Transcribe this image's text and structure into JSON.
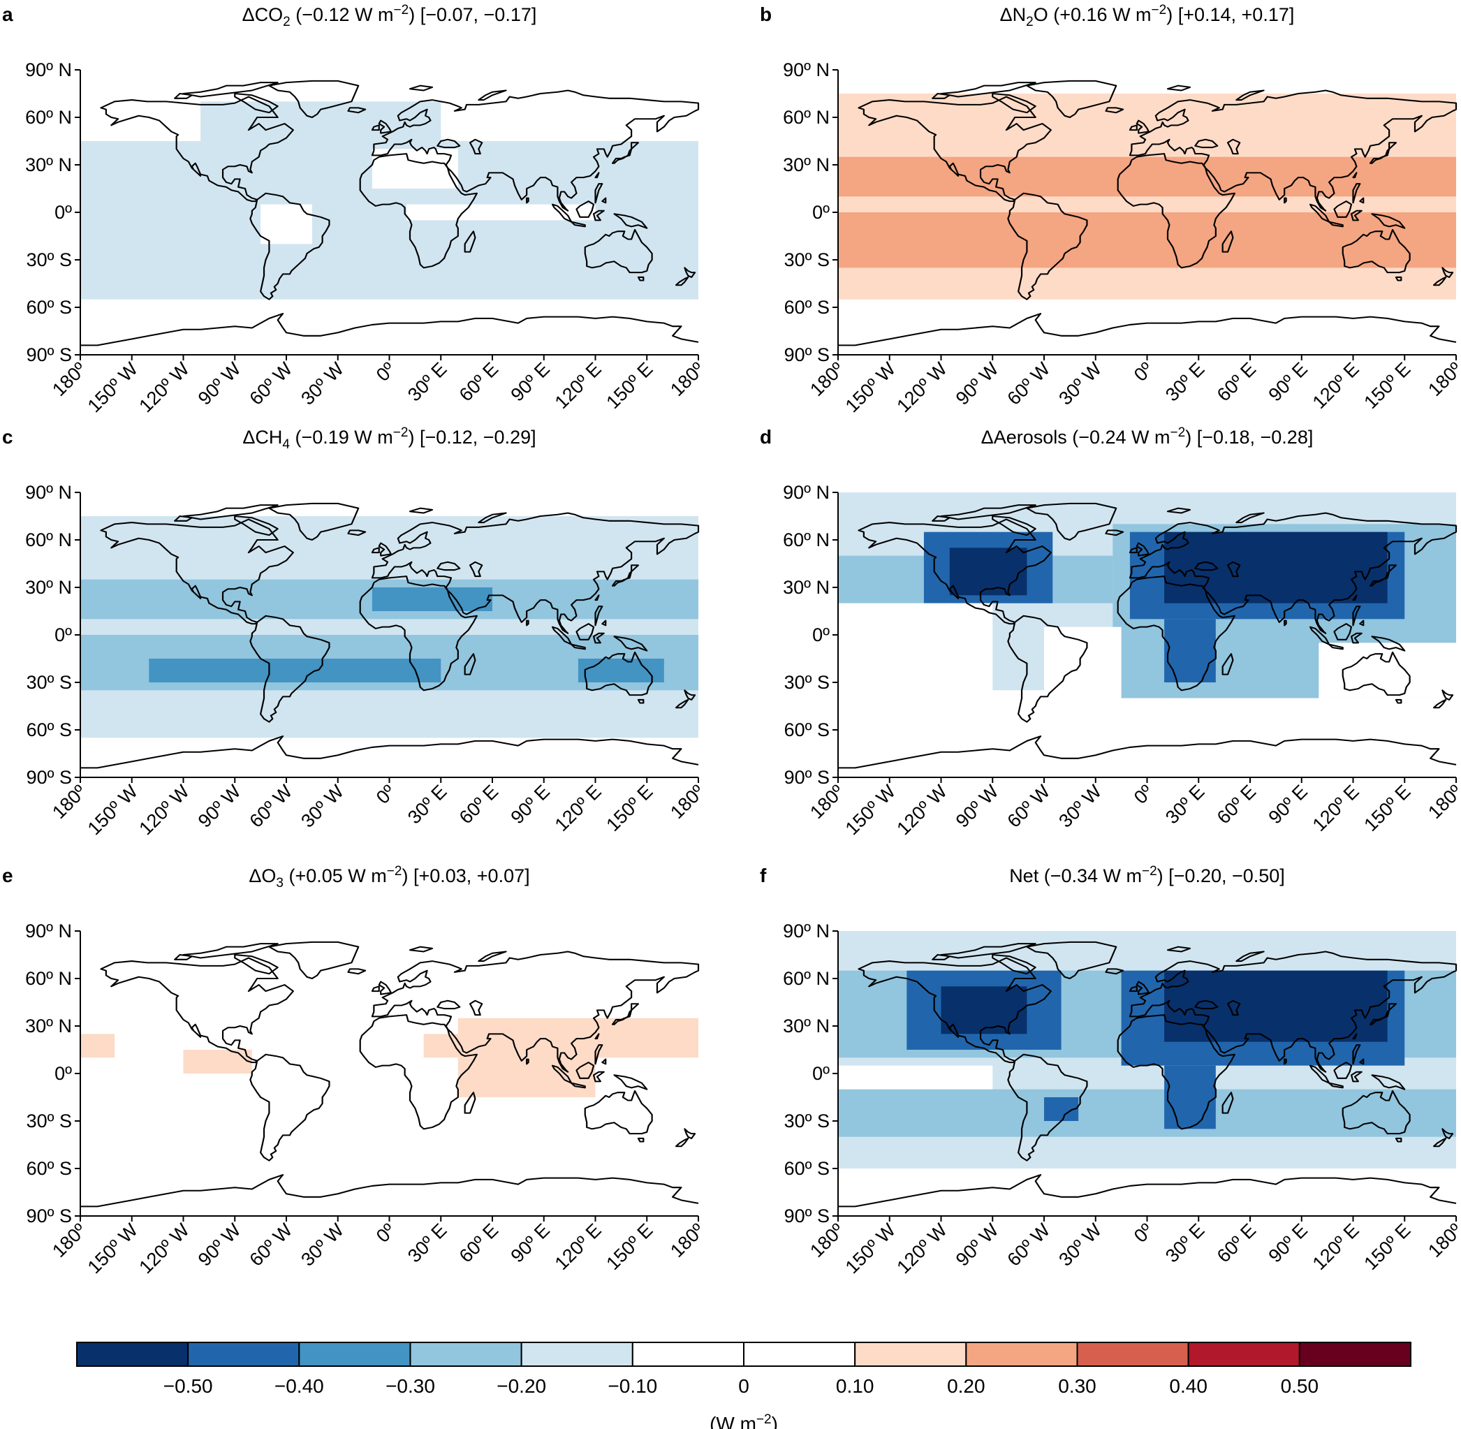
{
  "chart_data": {
    "type": "heatmap",
    "description_free": true,
    "panels": [
      {
        "letter": "a",
        "title_prefix": "ΔCO",
        "title_sub": "2",
        "title_rest": " (−0.12 W m",
        "title_sup": "−2",
        "title_end": ") [−0.07, −0.17]",
        "bands": [
          {
            "lat": [
              45,
              70
            ],
            "lon": [
              -110,
              30
            ],
            "value": -0.15
          },
          {
            "lat": [
              -55,
              45
            ],
            "lon": [
              -180,
              180
            ],
            "value": -0.15
          }
        ],
        "holes": [
          {
            "lat": [
              15,
              40
            ],
            "lon": [
              -10,
              40
            ]
          },
          {
            "lat": [
              -20,
              5
            ],
            "lon": [
              -75,
              -45
            ]
          },
          {
            "lat": [
              -5,
              5
            ],
            "lon": [
              10,
              120
            ]
          }
        ]
      },
      {
        "letter": "b",
        "title_prefix": "ΔN",
        "title_sub": "2",
        "title_rest": "O (+0.16 W m",
        "title_sup": "−2",
        "title_end": ") [+0.14, +0.17]",
        "bands": [
          {
            "lat": [
              -55,
              75
            ],
            "lon": [
              -180,
              180
            ],
            "value": 0.15
          },
          {
            "lat": [
              10,
              35
            ],
            "lon": [
              -180,
              180
            ],
            "value": 0.25
          },
          {
            "lat": [
              -35,
              0
            ],
            "lon": [
              -180,
              180
            ],
            "value": 0.25
          }
        ],
        "holes": []
      },
      {
        "letter": "c",
        "title_prefix": "ΔCH",
        "title_sub": "4",
        "title_rest": " (−0.19 W m",
        "title_sup": "−2",
        "title_end": ") [−0.12, −0.29]",
        "bands": [
          {
            "lat": [
              -65,
              75
            ],
            "lon": [
              -180,
              180
            ],
            "value": -0.15
          },
          {
            "lat": [
              10,
              35
            ],
            "lon": [
              -180,
              180
            ],
            "value": -0.25
          },
          {
            "lat": [
              -35,
              0
            ],
            "lon": [
              -180,
              180
            ],
            "value": -0.25
          },
          {
            "lat": [
              15,
              30
            ],
            "lon": [
              -10,
              60
            ],
            "value": -0.35
          },
          {
            "lat": [
              -30,
              -15
            ],
            "lon": [
              -140,
              30
            ],
            "value": -0.35
          },
          {
            "lat": [
              -30,
              -15
            ],
            "lon": [
              110,
              160
            ],
            "value": -0.35
          }
        ],
        "holes": []
      },
      {
        "letter": "d",
        "title_prefix": "ΔAerosols (−0.24 W m",
        "title_sub": "",
        "title_rest": "",
        "title_sup": "−2",
        "title_end": ") [−0.18, −0.28]",
        "bands": [
          {
            "lat": [
              -35,
              90
            ],
            "lon": [
              -180,
              180
            ],
            "value": -0.15
          },
          {
            "lat": [
              20,
              50
            ],
            "lon": [
              -180,
              -20
            ],
            "value": -0.25
          },
          {
            "lat": [
              20,
              65
            ],
            "lon": [
              -130,
              -55
            ],
            "value": -0.45
          },
          {
            "lat": [
              25,
              55
            ],
            "lon": [
              -115,
              -70
            ],
            "value": -0.55
          },
          {
            "lat": [
              -40,
              70
            ],
            "lon": [
              -20,
              180
            ],
            "value": -0.25
          },
          {
            "lat": [
              10,
              65
            ],
            "lon": [
              -10,
              150
            ],
            "value": -0.45
          },
          {
            "lat": [
              20,
              65
            ],
            "lon": [
              10,
              140
            ],
            "value": -0.55
          },
          {
            "lat": [
              -30,
              10
            ],
            "lon": [
              10,
              40
            ],
            "value": -0.45
          }
        ],
        "holes": [
          {
            "lat": [
              -65,
              20
            ],
            "lon": [
              -180,
              -90
            ]
          },
          {
            "lat": [
              -65,
              5
            ],
            "lon": [
              -60,
              -15
            ]
          },
          {
            "lat": [
              -65,
              -40
            ],
            "lon": [
              -180,
              180
            ]
          },
          {
            "lat": [
              -40,
              -5
            ],
            "lon": [
              100,
              180
            ]
          }
        ]
      },
      {
        "letter": "e",
        "title_prefix": "ΔO",
        "title_sub": "3",
        "title_rest": " (+0.05 W m",
        "title_sup": "−2",
        "title_end": ") [+0.03, +0.07]",
        "bands": [
          {
            "lat": [
              10,
              25
            ],
            "lon": [
              -180,
              -160
            ],
            "value": 0.15
          },
          {
            "lat": [
              0,
              15
            ],
            "lon": [
              -120,
              -80
            ],
            "value": 0.15
          },
          {
            "lat": [
              10,
              25
            ],
            "lon": [
              20,
              60
            ],
            "value": 0.15
          },
          {
            "lat": [
              -15,
              35
            ],
            "lon": [
              40,
              120
            ],
            "value": 0.15
          },
          {
            "lat": [
              10,
              35
            ],
            "lon": [
              120,
              180
            ],
            "value": 0.15
          }
        ],
        "holes": []
      },
      {
        "letter": "f",
        "title_prefix": "Net (−0.34 W m",
        "title_sub": "",
        "title_rest": "",
        "title_sup": "−2",
        "title_end": ") [−0.20, −0.50]",
        "bands": [
          {
            "lat": [
              -60,
              90
            ],
            "lon": [
              -180,
              180
            ],
            "value": -0.15
          },
          {
            "lat": [
              10,
              65
            ],
            "lon": [
              -180,
              180
            ],
            "value": -0.25
          },
          {
            "lat": [
              -40,
              -10
            ],
            "lon": [
              -180,
              180
            ],
            "value": -0.25
          },
          {
            "lat": [
              15,
              65
            ],
            "lon": [
              -140,
              -50
            ],
            "value": -0.45
          },
          {
            "lat": [
              25,
              55
            ],
            "lon": [
              -120,
              -70
            ],
            "value": -0.55
          },
          {
            "lat": [
              5,
              65
            ],
            "lon": [
              -15,
              150
            ],
            "value": -0.45
          },
          {
            "lat": [
              20,
              65
            ],
            "lon": [
              10,
              140
            ],
            "value": -0.55
          },
          {
            "lat": [
              -35,
              5
            ],
            "lon": [
              10,
              40
            ],
            "value": -0.45
          },
          {
            "lat": [
              -30,
              -15
            ],
            "lon": [
              -60,
              -40
            ],
            "value": -0.45
          }
        ],
        "holes": [
          {
            "lat": [
              -10,
              5
            ],
            "lon": [
              -180,
              -90
            ]
          }
        ]
      }
    ],
    "yticks": [
      "90º N",
      "60º N",
      "30º N",
      "0º",
      "30º S",
      "60º S",
      "90º S"
    ],
    "xticks": [
      "180º",
      "150º W",
      "120º W",
      "90º W",
      "60º W",
      "30º W",
      "0º",
      "30º E",
      "60º E",
      "90º E",
      "120º E",
      "150º E",
      "180º"
    ],
    "colorbar": {
      "bins": [
        {
          "color": "#08306b"
        },
        {
          "color": "#2166ac"
        },
        {
          "color": "#4393c3"
        },
        {
          "color": "#92c5de"
        },
        {
          "color": "#d1e5f0"
        },
        {
          "color": "#ffffff"
        },
        {
          "color": "#ffffff"
        },
        {
          "color": "#fddbc7"
        },
        {
          "color": "#f4a582"
        },
        {
          "color": "#d6604d"
        },
        {
          "color": "#b2182b"
        },
        {
          "color": "#67001f"
        }
      ],
      "tick_labels": [
        "−0.50",
        "−0.40",
        "−0.30",
        "−0.20",
        "−0.10",
        "0",
        "0.10",
        "0.20",
        "0.30",
        "0.40",
        "0.50"
      ],
      "unit_prefix": "(W m",
      "unit_sup": "−2",
      "unit_end": ")"
    }
  }
}
